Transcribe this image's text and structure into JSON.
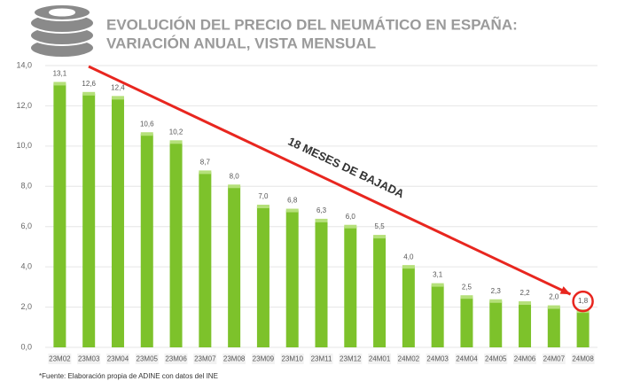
{
  "chart_data": {
    "type": "bar",
    "title_lines": [
      "EVOLUCIÓN DEL PRECIO DEL NEUMÁTICO EN ESPAÑA:",
      "VARIACIÓN ANUAL, VISTA MENSUAL"
    ],
    "categories": [
      "23M02",
      "23M03",
      "23M04",
      "23M05",
      "23M06",
      "23M07",
      "23M08",
      "23M09",
      "23M10",
      "23M11",
      "23M12",
      "24M01",
      "24M02",
      "24M03",
      "24M04",
      "24M05",
      "24M06",
      "24M07",
      "24M08"
    ],
    "values": [
      13.1,
      12.6,
      12.4,
      10.6,
      10.2,
      8.7,
      8.0,
      7.0,
      6.8,
      6.3,
      6.0,
      5.5,
      4.0,
      3.1,
      2.5,
      2.3,
      2.2,
      2.0,
      1.8
    ],
    "value_labels": [
      "13,1",
      "12,6",
      "12,4",
      "10,6",
      "10,2",
      "8,7",
      "8,0",
      "7,0",
      "6,8",
      "6,3",
      "6,0",
      "5,5",
      "4,0",
      "3,1",
      "2,5",
      "2,3",
      "2,2",
      "2,0",
      "1,8"
    ],
    "color": "#7dc22b",
    "ylim": [
      0,
      14
    ],
    "yticks": [
      {
        "value": 0,
        "label": "0,0"
      },
      {
        "value": 2,
        "label": "2,0"
      },
      {
        "value": 4,
        "label": "4,0"
      },
      {
        "value": 6,
        "label": "6,0"
      },
      {
        "value": 8,
        "label": "8,0"
      },
      {
        "value": 10,
        "label": "10,0"
      },
      {
        "value": 12,
        "label": "12,0"
      },
      {
        "value": 14,
        "label": "14,0"
      }
    ],
    "grid": true,
    "annotation": "18 MESES DE BAJADA",
    "footnote": "*Fuente: Elaboración propia de ADINE con datos del INE"
  }
}
